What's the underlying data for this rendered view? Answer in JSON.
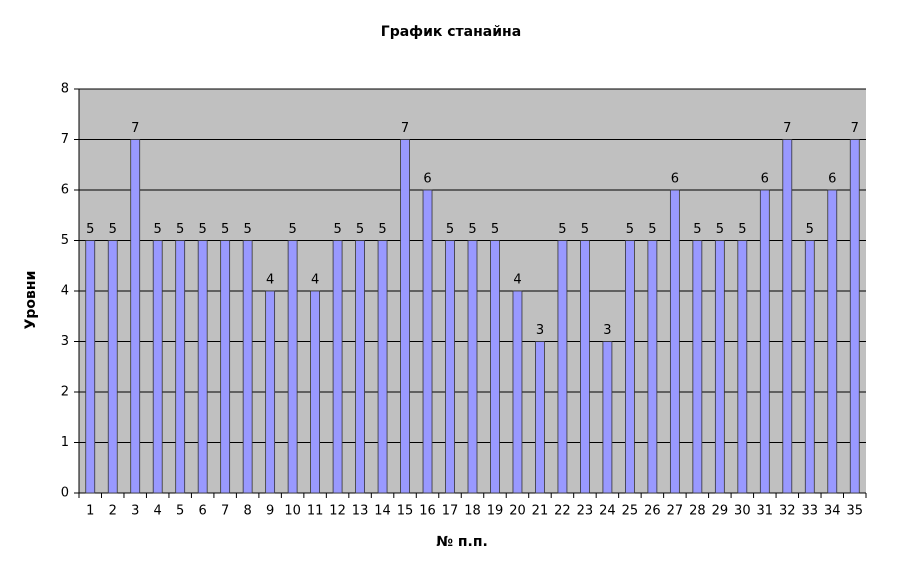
{
  "chart_data": {
    "type": "bar",
    "title": "График станайна",
    "x_label": "№ п.п.",
    "y_label": "Уровни",
    "categories": [
      "1",
      "2",
      "3",
      "4",
      "5",
      "6",
      "7",
      "8",
      "9",
      "10",
      "11",
      "12",
      "13",
      "14",
      "15",
      "16",
      "17",
      "18",
      "19",
      "20",
      "21",
      "22",
      "23",
      "24",
      "25",
      "26",
      "27",
      "28",
      "29",
      "30",
      "31",
      "32",
      "33",
      "34",
      "35"
    ],
    "values": [
      5,
      5,
      7,
      5,
      5,
      5,
      5,
      5,
      4,
      5,
      4,
      5,
      5,
      5,
      7,
      6,
      5,
      5,
      5,
      4,
      3,
      5,
      5,
      3,
      5,
      5,
      6,
      5,
      5,
      5,
      6,
      7,
      5,
      6,
      7
    ],
    "color": "#9999ff",
    "ylim": [
      0,
      8
    ],
    "yticks": [
      0,
      1,
      2,
      3,
      4,
      5,
      6,
      7,
      8
    ],
    "grid": true
  }
}
